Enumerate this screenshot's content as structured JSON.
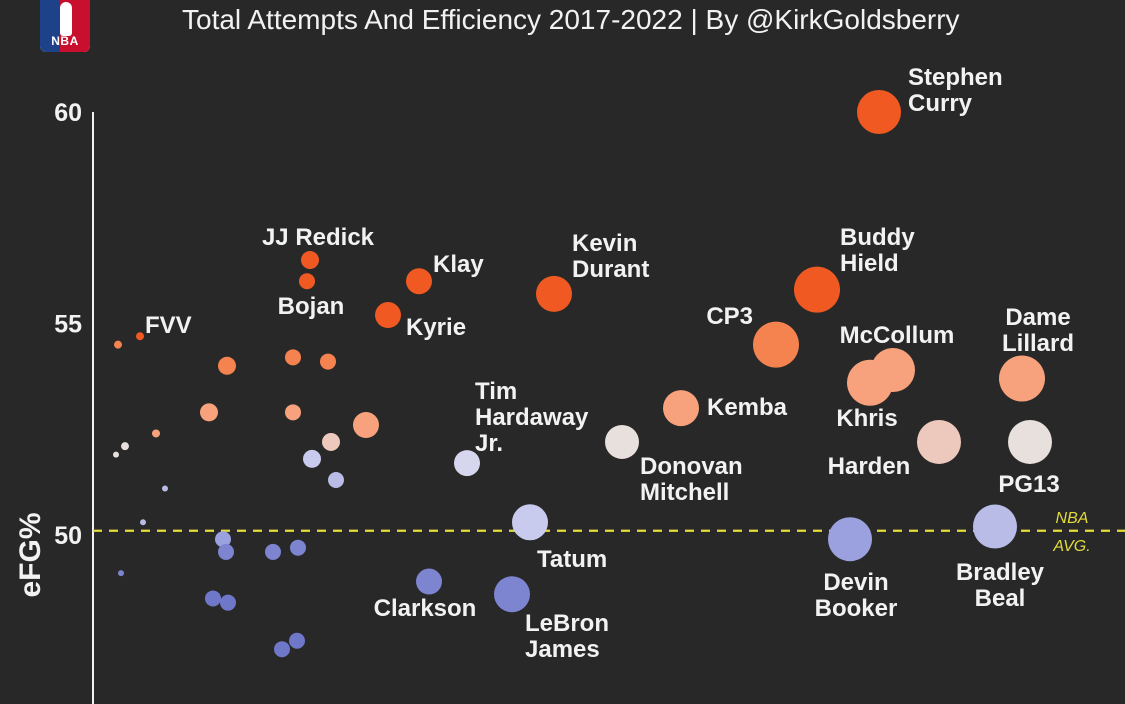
{
  "header": {
    "subtitle": "Total Attempts And Efficiency 2017-2022 | By @KirkGoldsberry",
    "logo_text": "NBA"
  },
  "colors": {
    "background": "#282828",
    "hot": "#f05a22",
    "warm": "#f7a27c",
    "neutral": "#e8e0dc",
    "cool": "#b8bce6",
    "cold": "#7d84d0",
    "average_line": "#e3dc3a"
  },
  "chart_data": {
    "type": "scatter",
    "title": "",
    "subtitle": "Total Attempts And Efficiency 2017-2022 | By @KirkGoldsberry",
    "xlabel": "",
    "ylabel": "eFG%",
    "ylim": [
      46.5,
      62
    ],
    "yticks": [
      50,
      55,
      60
    ],
    "reference_line": {
      "value": 50.1,
      "label_line1": "NBA",
      "label_line2": "AVG.",
      "style": "dashed"
    },
    "size_encodes": "total attempts",
    "color_encodes": "eFG% relative to league average",
    "labeled_points": [
      {
        "name": "Stephen Curry",
        "label_lines": [
          "Stephen",
          "Curry"
        ],
        "y": 60.0,
        "size": 22,
        "color": "#f05a22"
      },
      {
        "name": "JJ Redick",
        "label_lines": [
          "JJ Redick"
        ],
        "y": 56.5,
        "size": 9,
        "color": "#f05a22"
      },
      {
        "name": "Bojan",
        "label_lines": [
          "Bojan"
        ],
        "y": 56.0,
        "size": 8,
        "color": "#f05a22"
      },
      {
        "name": "Klay",
        "label_lines": [
          "Klay"
        ],
        "y": 56.0,
        "size": 13,
        "color": "#f05a22"
      },
      {
        "name": "Kyrie",
        "label_lines": [
          "Kyrie"
        ],
        "y": 55.2,
        "size": 13,
        "color": "#f05a22"
      },
      {
        "name": "Kevin Durant",
        "label_lines": [
          "Kevin",
          "Durant"
        ],
        "y": 55.7,
        "size": 18,
        "color": "#f05a22"
      },
      {
        "name": "Buddy Hield",
        "label_lines": [
          "Buddy",
          "Hield"
        ],
        "y": 55.8,
        "size": 23,
        "color": "#f05a22"
      },
      {
        "name": "CP3",
        "label_lines": [
          "CP3"
        ],
        "y": 54.5,
        "size": 23,
        "color": "#f5834f"
      },
      {
        "name": "McCollum",
        "label_lines": [
          "McCollum"
        ],
        "y": 53.9,
        "size": 22,
        "color": "#f7a27c"
      },
      {
        "name": "Khris",
        "label_lines": [
          "Khris"
        ],
        "y": 53.6,
        "size": 23,
        "color": "#f7a27c"
      },
      {
        "name": "Dame Lillard",
        "label_lines": [
          "Dame",
          "Lillard"
        ],
        "y": 53.7,
        "size": 23,
        "color": "#f7a27c"
      },
      {
        "name": "Kemba",
        "label_lines": [
          "Kemba"
        ],
        "y": 53.0,
        "size": 18,
        "color": "#f7a27c"
      },
      {
        "name": "Harden",
        "label_lines": [
          "Harden"
        ],
        "y": 52.2,
        "size": 22,
        "color": "#ecc9bc"
      },
      {
        "name": "PG13",
        "label_lines": [
          "PG13"
        ],
        "y": 52.2,
        "size": 22,
        "color": "#e8e0dc"
      },
      {
        "name": "Donovan Mitchell",
        "label_lines": [
          "Donovan",
          "Mitchell"
        ],
        "y": 52.2,
        "size": 17,
        "color": "#e8e0dc"
      },
      {
        "name": "Tim Hardaway Jr.",
        "label_lines": [
          "Tim",
          "Hardaway",
          "Jr."
        ],
        "y": 51.7,
        "size": 13,
        "color": "#d6d6ee"
      },
      {
        "name": "Tatum",
        "label_lines": [
          "Tatum"
        ],
        "y": 50.3,
        "size": 18,
        "color": "#c9cbee"
      },
      {
        "name": "Devin Booker",
        "label_lines": [
          "Devin",
          "Booker"
        ],
        "y": 49.9,
        "size": 22,
        "color": "#9ba1de"
      },
      {
        "name": "Bradley Beal",
        "label_lines": [
          "Bradley",
          "Beal"
        ],
        "y": 50.2,
        "size": 22,
        "color": "#b8bce6"
      },
      {
        "name": "Clarkson",
        "label_lines": [
          "Clarkson"
        ],
        "y": 48.9,
        "size": 13,
        "color": "#7d84d0"
      },
      {
        "name": "LeBron James",
        "label_lines": [
          "LeBron",
          "James"
        ],
        "y": 48.6,
        "size": 18,
        "color": "#7d84d0"
      },
      {
        "name": "FVV",
        "label_lines": [
          "FVV"
        ],
        "y": 54.7,
        "size": 4,
        "color": "#f05a22"
      }
    ],
    "unlabeled_points": [
      {
        "y": 54.5,
        "size": 4,
        "color": "#f5834f"
      },
      {
        "y": 54.0,
        "size": 9,
        "color": "#f5834f"
      },
      {
        "y": 54.2,
        "size": 8,
        "color": "#f5834f"
      },
      {
        "y": 54.1,
        "size": 8,
        "color": "#f5834f"
      },
      {
        "y": 52.9,
        "size": 9,
        "color": "#f7a27c"
      },
      {
        "y": 52.9,
        "size": 8,
        "color": "#f7a27c"
      },
      {
        "y": 52.6,
        "size": 13,
        "color": "#f7a27c"
      },
      {
        "y": 52.4,
        "size": 4,
        "color": "#f7a27c"
      },
      {
        "y": 52.2,
        "size": 9,
        "color": "#ecc9bc"
      },
      {
        "y": 52.1,
        "size": 4,
        "color": "#e8e0dc"
      },
      {
        "y": 51.8,
        "size": 9,
        "color": "#c9cbee"
      },
      {
        "y": 51.9,
        "size": 3,
        "color": "#e8e0dc"
      },
      {
        "y": 51.3,
        "size": 8,
        "color": "#b8bce6"
      },
      {
        "y": 51.1,
        "size": 3,
        "color": "#b8bce6"
      },
      {
        "y": 50.3,
        "size": 3,
        "color": "#b8bce6"
      },
      {
        "y": 49.9,
        "size": 8,
        "color": "#9ba1de"
      },
      {
        "y": 49.6,
        "size": 8,
        "color": "#7d84d0"
      },
      {
        "y": 49.6,
        "size": 8,
        "color": "#7d84d0"
      },
      {
        "y": 49.7,
        "size": 8,
        "color": "#7d84d0"
      },
      {
        "y": 49.1,
        "size": 3,
        "color": "#7d84d0"
      },
      {
        "y": 48.5,
        "size": 8,
        "color": "#6f77c8"
      },
      {
        "y": 48.4,
        "size": 8,
        "color": "#6f77c8"
      },
      {
        "y": 47.5,
        "size": 8,
        "color": "#6f77c8"
      },
      {
        "y": 47.3,
        "size": 8,
        "color": "#6f77c8"
      }
    ],
    "grid": false,
    "legend": "none"
  }
}
